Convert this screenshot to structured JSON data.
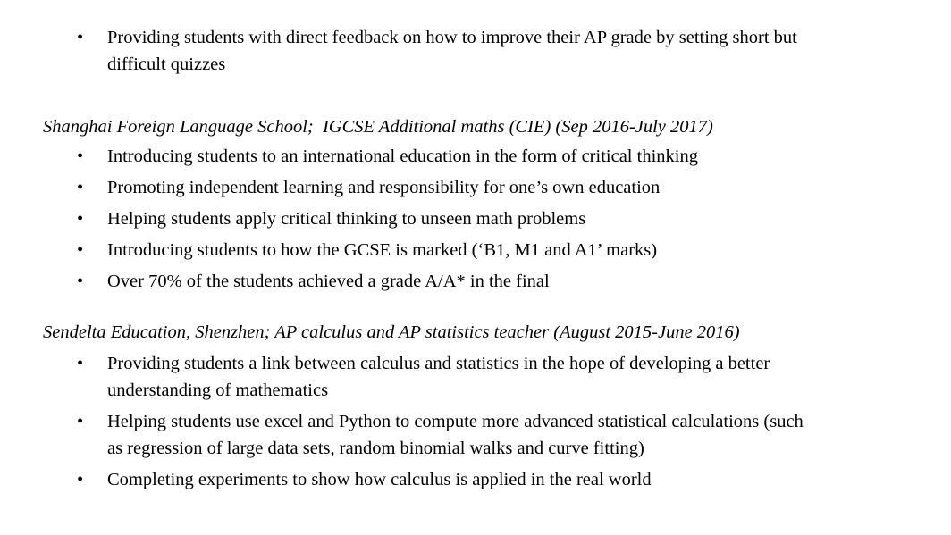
{
  "page": {
    "background_color": "#ffffff",
    "text_color": "#000000",
    "bullet_char": "•"
  },
  "document": {
    "intro_bullets": [
      {
        "lines": [
          "Providing students with direct feedback on how to improve their AP grade by setting short but",
          "difficult quizzes"
        ]
      }
    ],
    "sections": [
      {
        "heading": "Shanghai Foreign Language School;  IGCSE Additional maths (CIE) (Sep 2016-July 2017)",
        "bullets": [
          {
            "lines": [
              "Introducing students to an international education in the form of critical thinking"
            ]
          },
          {
            "lines": [
              "Promoting independent learning and responsibility for one’s own education"
            ]
          },
          {
            "lines": [
              "Helping students apply critical thinking to unseen math problems"
            ]
          },
          {
            "lines": [
              "Introducing students to how the GCSE is marked (‘B1, M1 and A1’ marks)"
            ]
          },
          {
            "lines": [
              "Over 70% of the students achieved a grade A/A* in the final"
            ]
          }
        ]
      },
      {
        "heading": "Sendelta Education, Shenzhen; AP calculus and AP statistics teacher (August 2015-June 2016)",
        "bullets": [
          {
            "lines": [
              "Providing students a link between calculus and statistics in the hope of developing a better",
              "understanding of mathematics"
            ]
          },
          {
            "lines": [
              "Helping students use excel and Python to compute more advanced statistical calculations (such",
              "as regression of large data sets, random binomial walks and curve fitting)"
            ]
          },
          {
            "lines": [
              "Completing experiments to show how calculus is applied in the real world"
            ]
          }
        ]
      }
    ]
  }
}
